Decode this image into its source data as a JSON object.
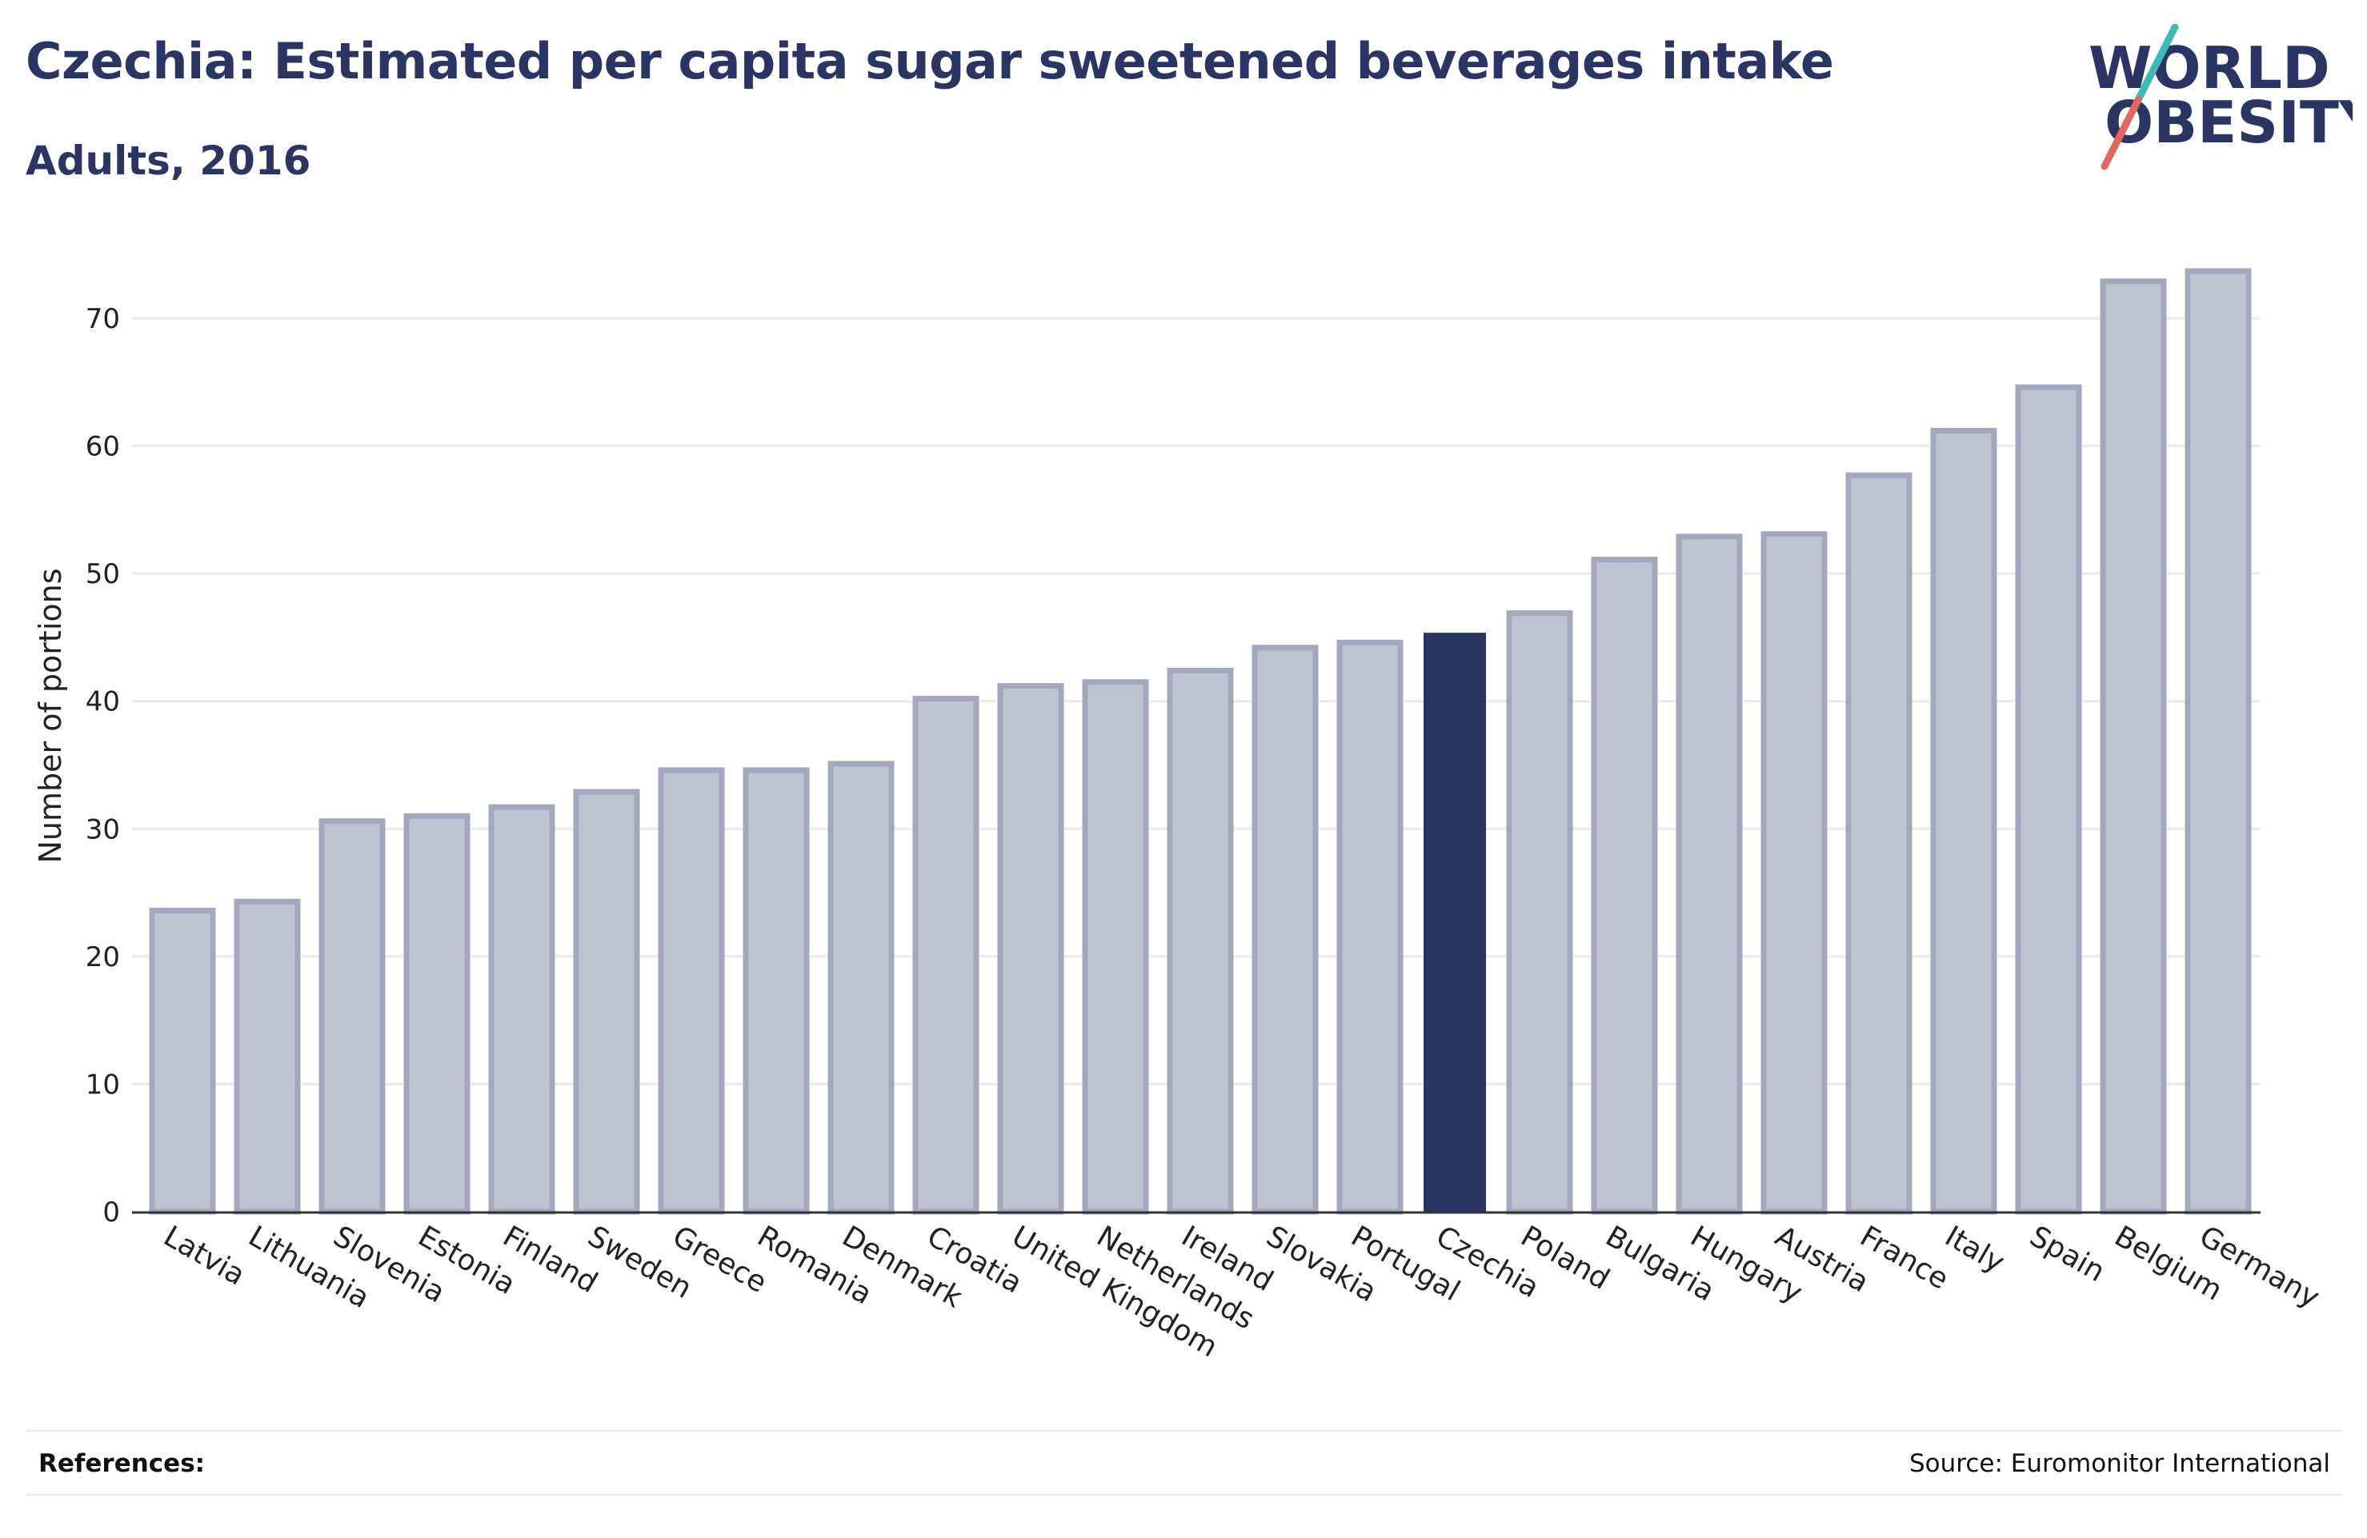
{
  "header": {
    "title": "Czechia: Estimated per capita sugar sweetened beverages intake",
    "subtitle": "Adults, 2016"
  },
  "logo": {
    "line1": "WORLD",
    "line2": "OBESITY",
    "colors": {
      "text": "#2b3564",
      "slash_red": "#e2685e",
      "slash_teal": "#3fb8b6"
    }
  },
  "footer": {
    "references_label": "References:",
    "source": "Source: Euromonitor International"
  },
  "colors": {
    "bar_fill": "#bfc2cf",
    "bar_stroke": "#a3a8bf",
    "highlight": "#2b3564",
    "grid": "#e8ebef",
    "axis": "#333333",
    "text": "#222222"
  },
  "chart_data": {
    "type": "bar",
    "ylabel": "Number of portions",
    "xlabel": "",
    "ylim": [
      0,
      75
    ],
    "yticks": [
      0,
      10,
      20,
      30,
      40,
      50,
      60,
      70
    ],
    "grid": true,
    "highlight": "Czechia",
    "categories": [
      "Latvia",
      "Lithuania",
      "Slovenia",
      "Estonia",
      "Finland",
      "Sweden",
      "Greece",
      "Romania",
      "Denmark",
      "Croatia",
      "United Kingdom",
      "Netherlands",
      "Ireland",
      "Slovakia",
      "Portugal",
      "Czechia",
      "Poland",
      "Bulgaria",
      "Hungary",
      "Austria",
      "France",
      "Italy",
      "Spain",
      "Belgium",
      "Germany"
    ],
    "values": [
      23.6,
      24.3,
      30.6,
      31.0,
      31.7,
      32.9,
      34.6,
      34.6,
      35.1,
      40.2,
      41.2,
      41.5,
      42.4,
      44.2,
      44.6,
      45.3,
      46.9,
      51.1,
      52.9,
      53.1,
      57.7,
      61.2,
      64.6,
      72.9,
      73.7
    ]
  }
}
